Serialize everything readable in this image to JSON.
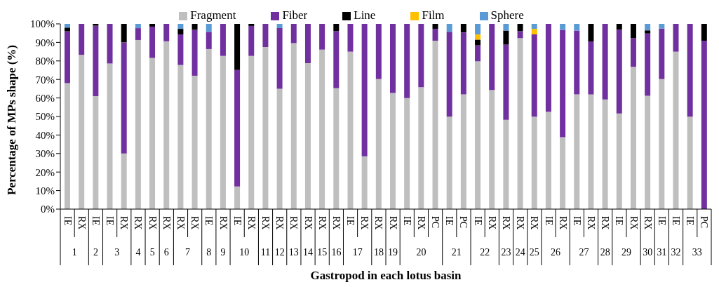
{
  "chart_data": {
    "type": "bar",
    "stacked": true,
    "xlabel": "Gastropod in each lotus basin",
    "ylabel": "Percentage of MPs shape (%)",
    "legend": "top",
    "grid": false,
    "categories": [
      "IE",
      "RX",
      "IE",
      "IE",
      "RX",
      "RX",
      "RX",
      "RX",
      "RX",
      "RX",
      "IE",
      "RX",
      "IE",
      "RX",
      "RX",
      "RX",
      "RX",
      "RX",
      "RX",
      "RX",
      "IE",
      "RX",
      "RX",
      "RX",
      "IE",
      "RX",
      "PC",
      "IE",
      "PC",
      "IE",
      "RX",
      "RX",
      "RX",
      "RX",
      "IE",
      "RX",
      "IE",
      "RX",
      "RX",
      "IE",
      "RX",
      "RX",
      "IE",
      "IE",
      "IE",
      "PC"
    ],
    "ylim": [
      0,
      100
    ],
    "yticks": [
      {
        "value": 0,
        "label": "0%"
      },
      {
        "value": 10,
        "label": "10%"
      },
      {
        "value": 20,
        "label": "20%"
      },
      {
        "value": 30,
        "label": "30%"
      },
      {
        "value": 40,
        "label": "40%"
      },
      {
        "value": 50,
        "label": "50%"
      },
      {
        "value": 60,
        "label": "60%"
      },
      {
        "value": 70,
        "label": "70%"
      },
      {
        "value": 80,
        "label": "80%"
      },
      {
        "value": 90,
        "label": "90%"
      },
      {
        "value": 100,
        "label": "100%"
      }
    ],
    "series": [
      {
        "name": "Fragment",
        "color": "#bfbfbf",
        "values": [
          68,
          83.3,
          61,
          78.6,
          30,
          91.3,
          81.6,
          90.6,
          77.8,
          72,
          86.4,
          82.7,
          12.2,
          82.7,
          87.5,
          65,
          89.6,
          78.8,
          86.1,
          65.3,
          85,
          28.5,
          70.2,
          62.7,
          59.9,
          65.8,
          90.9,
          49.9,
          61.9,
          79.8,
          64.3,
          48.2,
          92.3,
          49.9,
          52.6,
          38.8,
          61.9,
          61.9,
          59.2,
          51.6,
          76.8,
          61.2,
          70.2,
          85,
          49.9,
          0
        ]
      },
      {
        "name": "Fiber",
        "color": "#7030a0",
        "values": [
          28,
          16.7,
          38,
          21.4,
          60,
          6.4,
          16.9,
          9.4,
          16.5,
          24.8,
          9.3,
          17.3,
          62.9,
          16.2,
          12.5,
          32.7,
          10.4,
          21.2,
          13.9,
          30.8,
          15,
          71.5,
          29.8,
          37.3,
          40.1,
          34.2,
          6.4,
          45.8,
          33.5,
          8.6,
          35.7,
          40.6,
          3.8,
          44.4,
          47.4,
          58,
          34.5,
          28.6,
          40.8,
          45.2,
          15.5,
          33.6,
          27.3,
          15,
          50.1,
          90.9
        ]
      },
      {
        "name": "Line",
        "color": "#000000",
        "values": [
          2,
          0,
          1,
          0,
          10,
          0,
          1.5,
          0,
          3,
          3.2,
          0,
          0,
          24.9,
          1.1,
          0,
          0,
          0,
          0,
          0,
          3.9,
          0,
          0,
          0,
          0,
          0,
          0,
          2.7,
          0,
          4.6,
          3.1,
          0,
          7.6,
          3.9,
          0,
          0,
          0,
          0,
          9.5,
          0,
          3.2,
          7.7,
          1.7,
          0,
          0,
          0,
          9.1
        ]
      },
      {
        "name": "Film",
        "color": "#ffc000",
        "values": [
          0,
          0,
          0,
          0,
          0,
          0,
          0,
          0,
          0,
          0,
          0,
          0,
          0,
          0,
          0,
          0,
          0,
          0,
          0,
          0,
          0,
          0,
          0,
          0,
          0,
          0,
          0,
          0,
          0,
          2.8,
          0,
          0,
          0,
          3,
          0,
          0,
          0,
          0,
          0,
          0,
          0,
          0,
          0,
          0,
          0,
          0
        ]
      },
      {
        "name": "Sphere",
        "color": "#5b9bd5",
        "values": [
          2,
          0,
          0,
          0,
          0,
          2.3,
          0,
          0,
          2.7,
          0,
          4.3,
          0,
          0,
          0,
          0,
          2.3,
          0,
          0,
          0,
          0,
          0,
          0,
          0,
          0,
          0,
          0,
          0,
          4.3,
          0,
          5.7,
          0,
          3.6,
          0,
          2.7,
          0,
          3.2,
          3.6,
          0,
          0,
          0,
          0,
          3.5,
          2.5,
          0,
          0,
          0
        ]
      }
    ],
    "annotations": [
      "1",
      "2",
      "3",
      "4",
      "5",
      "6",
      "7",
      "8",
      "9",
      "10",
      "11",
      "12",
      "13",
      "14",
      "15",
      "16",
      "17",
      "18",
      "19",
      "20",
      "21",
      "22",
      "23",
      "24",
      "25",
      "26",
      "27",
      "28",
      "29",
      "30",
      "31",
      "32",
      "33"
    ]
  }
}
